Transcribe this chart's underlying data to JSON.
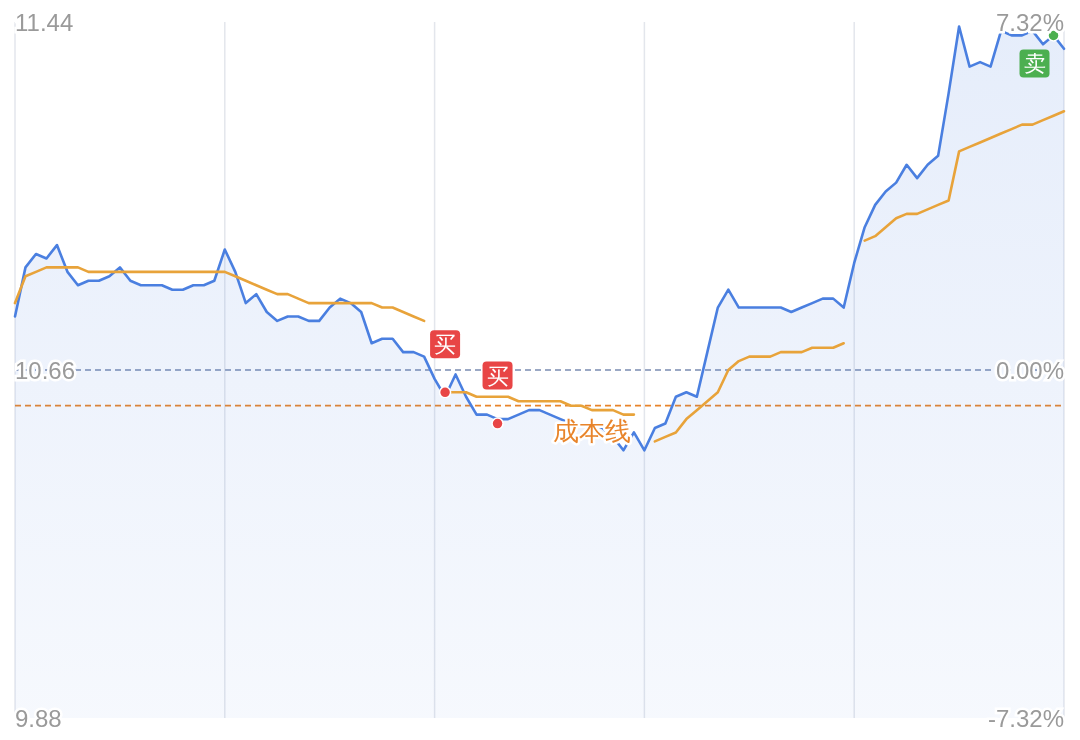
{
  "chart_data": {
    "type": "area",
    "categories": [
      null,
      null,
      null,
      null,
      null,
      null,
      null,
      null,
      null,
      null,
      null,
      null,
      null,
      null,
      null,
      null,
      null,
      null,
      null,
      null,
      null,
      null,
      null,
      null,
      null,
      null,
      null,
      null,
      null,
      null,
      null,
      null,
      null,
      null,
      null,
      null,
      null,
      null,
      null,
      null,
      null,
      null,
      null,
      null,
      null,
      null,
      null,
      null,
      null,
      null,
      null,
      null,
      null,
      null,
      null,
      null,
      null,
      null,
      null,
      null,
      null,
      null,
      null,
      null,
      null,
      null,
      null,
      null,
      null,
      null,
      null,
      null,
      null,
      null,
      null,
      null,
      null,
      null,
      null,
      null,
      null,
      null,
      null,
      null,
      null,
      null,
      null,
      null,
      null,
      null,
      null,
      null,
      null,
      null,
      null,
      null,
      null,
      null,
      null,
      null,
      null
    ],
    "ylim": [
      9.88,
      11.44
    ],
    "yticks": [
      9.88,
      10.66,
      11.44
    ],
    "y2lim": [
      -7.32,
      7.32
    ],
    "y2ticks": [
      {
        "value": -7.32,
        "label": "-7.32%"
      },
      {
        "value": 0,
        "label": "0.00%"
      },
      {
        "value": 7.32,
        "label": "7.32%"
      }
    ],
    "grid": "x",
    "tick_labels": "y",
    "series": [
      {
        "color": "#4a7fe0",
        "values": [
          10.78,
          10.89,
          10.92,
          10.91,
          10.94,
          10.88,
          10.85,
          10.86,
          10.86,
          10.87,
          10.89,
          10.86,
          10.85,
          10.85,
          10.85,
          10.84,
          10.84,
          10.85,
          10.85,
          10.86,
          10.93,
          10.88,
          10.81,
          10.83,
          10.79,
          10.77,
          10.78,
          10.78,
          10.77,
          10.77,
          10.8,
          10.82,
          10.81,
          10.79,
          10.72,
          10.73,
          10.73,
          10.7,
          10.7,
          10.69,
          10.64,
          10.6,
          10.65,
          10.6,
          10.56,
          10.56,
          10.55,
          10.55,
          10.56,
          10.57,
          10.57,
          10.56,
          10.55,
          10.54,
          10.54,
          10.54,
          10.53,
          10.51,
          10.48,
          10.52,
          10.48,
          10.53,
          10.54,
          10.6,
          10.61,
          10.6,
          10.7,
          10.8,
          10.84,
          10.8,
          10.8,
          10.8,
          10.8,
          10.8,
          10.79,
          10.8,
          10.81,
          10.82,
          10.82,
          10.8,
          10.9,
          10.98,
          11.03,
          11.06,
          11.08,
          11.12,
          11.09,
          11.12,
          11.14,
          11.28,
          11.43,
          11.34,
          11.35,
          11.34,
          11.42,
          11.41,
          11.41,
          11.42,
          11.39,
          11.41,
          11.38
        ]
      },
      {
        "type": "line",
        "color": "#e8a33a",
        "values": [
          10.81,
          10.87,
          10.88,
          10.89,
          10.89,
          10.89,
          10.89,
          10.88,
          10.88,
          10.88,
          10.88,
          10.88,
          10.88,
          10.88,
          10.88,
          10.88,
          10.88,
          10.88,
          10.88,
          10.88,
          10.88,
          10.87,
          10.86,
          10.85,
          10.84,
          10.83,
          10.83,
          10.82,
          10.81,
          10.81,
          10.81,
          10.81,
          10.81,
          10.81,
          10.81,
          10.8,
          10.8,
          10.79,
          10.78,
          10.77,
          null,
          10.61,
          10.61,
          10.61,
          10.6,
          10.6,
          10.6,
          10.6,
          10.59,
          10.59,
          10.59,
          10.59,
          10.59,
          10.58,
          10.58,
          10.57,
          10.57,
          10.57,
          10.56,
          10.56,
          null,
          10.5,
          10.51,
          10.52,
          10.55,
          10.57,
          10.59,
          10.61,
          10.66,
          10.68,
          10.69,
          10.69,
          10.69,
          10.7,
          10.7,
          10.7,
          10.71,
          10.71,
          10.71,
          10.72,
          null,
          10.95,
          10.96,
          10.98,
          11.0,
          11.01,
          11.01,
          11.02,
          11.03,
          11.04,
          11.15,
          11.16,
          11.17,
          11.18,
          11.19,
          11.2,
          11.21,
          11.21,
          11.22,
          11.23,
          11.24
        ]
      },
      {
        "type": "scatter",
        "color": "#e84545",
        "values": [
          null,
          null,
          null,
          null,
          null,
          null,
          null,
          null,
          null,
          null,
          null,
          null,
          null,
          null,
          null,
          null,
          null,
          null,
          null,
          null,
          null,
          null,
          null,
          null,
          null,
          null,
          null,
          null,
          null,
          null,
          null,
          null,
          null,
          null,
          null,
          null,
          null,
          null,
          null,
          null,
          null,
          10.61,
          null,
          null,
          null,
          null,
          10.54,
          null,
          null,
          null,
          null,
          null,
          null,
          null,
          null,
          null,
          null,
          null,
          null,
          null,
          null,
          null,
          null,
          null,
          null,
          null,
          null,
          null,
          null,
          null,
          null,
          null,
          null,
          null,
          null,
          null,
          null,
          null,
          null,
          null,
          null,
          null,
          null,
          null,
          null,
          null,
          null,
          null,
          null,
          null,
          null,
          null,
          null,
          null,
          null,
          null,
          null,
          null,
          null,
          null,
          null
        ],
        "value_labels": [
          null,
          null,
          null,
          null,
          null,
          null,
          null,
          null,
          null,
          null,
          null,
          null,
          null,
          null,
          null,
          null,
          null,
          null,
          null,
          null,
          null,
          null,
          null,
          null,
          null,
          null,
          null,
          null,
          null,
          null,
          null,
          null,
          null,
          null,
          null,
          null,
          null,
          null,
          null,
          null,
          null,
          "买",
          null,
          null,
          null,
          null,
          "买",
          null,
          null,
          null,
          null,
          null,
          null,
          null,
          null,
          null,
          null,
          null,
          null,
          null,
          null,
          null,
          null,
          null,
          null,
          null,
          null,
          null,
          null,
          null,
          null,
          null,
          null,
          null,
          null,
          null,
          null,
          null,
          null,
          null,
          null,
          null,
          null,
          null,
          null,
          null,
          null,
          null,
          null,
          null,
          null,
          null,
          null,
          null,
          null,
          null,
          null,
          null,
          null,
          null,
          null
        ]
      },
      {
        "type": "scatter",
        "color": "#4caf50",
        "values": [
          null,
          null,
          null,
          null,
          null,
          null,
          null,
          null,
          null,
          null,
          null,
          null,
          null,
          null,
          null,
          null,
          null,
          null,
          null,
          null,
          null,
          null,
          null,
          null,
          null,
          null,
          null,
          null,
          null,
          null,
          null,
          null,
          null,
          null,
          null,
          null,
          null,
          null,
          null,
          null,
          null,
          null,
          null,
          null,
          null,
          null,
          null,
          null,
          null,
          null,
          null,
          null,
          null,
          null,
          null,
          null,
          null,
          null,
          null,
          null,
          null,
          null,
          null,
          null,
          null,
          null,
          null,
          null,
          null,
          null,
          null,
          null,
          null,
          null,
          null,
          null,
          null,
          null,
          null,
          null,
          null,
          null,
          null,
          null,
          null,
          null,
          null,
          null,
          null,
          null,
          null,
          null,
          null,
          null,
          null,
          null,
          null,
          null,
          null,
          11.41,
          null
        ],
        "value_labels": [
          null,
          null,
          null,
          null,
          null,
          null,
          null,
          null,
          null,
          null,
          null,
          null,
          null,
          null,
          null,
          null,
          null,
          null,
          null,
          null,
          null,
          null,
          null,
          null,
          null,
          null,
          null,
          null,
          null,
          null,
          null,
          null,
          null,
          null,
          null,
          null,
          null,
          null,
          null,
          null,
          null,
          null,
          null,
          null,
          null,
          null,
          null,
          null,
          null,
          null,
          null,
          null,
          null,
          null,
          null,
          null,
          null,
          null,
          null,
          null,
          null,
          null,
          null,
          null,
          null,
          null,
          null,
          null,
          null,
          null,
          null,
          null,
          null,
          null,
          null,
          null,
          null,
          null,
          null,
          null,
          null,
          null,
          null,
          null,
          null,
          null,
          null,
          null,
          null,
          null,
          null,
          null,
          null,
          null,
          null,
          null,
          null,
          null,
          null,
          "卖",
          null
        ]
      }
    ],
    "ref_lines": [
      {
        "axis": "y",
        "value": 10.66,
        "color": "#9aa8c4",
        "line_style": "dashed"
      },
      {
        "axis": "y",
        "value": 10.58,
        "label": "成本线",
        "color": "#e8842a",
        "line_style": "dashed"
      }
    ]
  }
}
